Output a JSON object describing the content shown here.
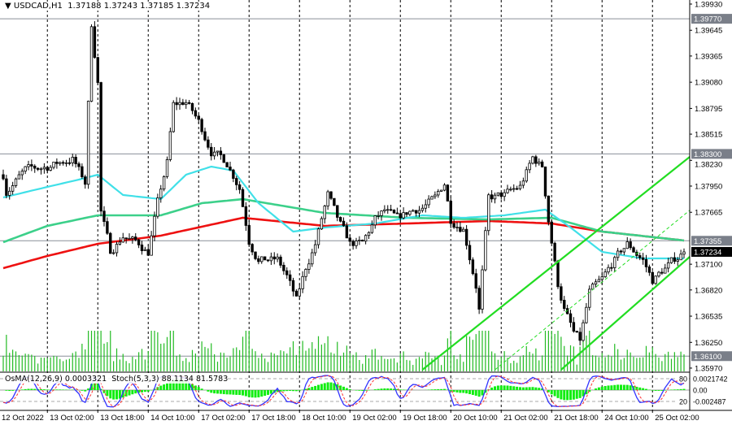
{
  "header": {
    "collapse_icon": "triangle-down-icon",
    "symbol": "USDCAD,H1",
    "ohlc": "1.37188 1.37243 1.37185 1.37234"
  },
  "oscillator": {
    "label": "OsMA(12,26,9) 0.0003321  Stoch(5,3,3) 88.1134 81.5783",
    "scale_labels": [
      "0.0021742",
      "0.00",
      "-0.002487"
    ],
    "level_labels": [
      "80",
      "20"
    ]
  },
  "colors": {
    "background": "#ffffff",
    "candle": "#000000",
    "ma_fast": "#40e0e8",
    "ma_mid": "#3cd08a",
    "ma_slow": "#ee1111",
    "channel": "#22dd22",
    "volume": "#22bb22",
    "osma": "#11ee11",
    "stoch_main": "#3333ff",
    "stoch_signal": "#ff3333",
    "level_label_bg": "#7a7f89",
    "price_label_bg": "#000000"
  },
  "chart_data": {
    "type": "candlestick",
    "symbol": "USDCAD",
    "timeframe": "H1",
    "ylim": [
      1.3597,
      1.3993
    ],
    "y_ticks": [
      "1.39930",
      "1.39645",
      "1.39365",
      "1.39080",
      "1.38795",
      "1.38515",
      "1.38230",
      "1.37950",
      "1.37665",
      "1.37100",
      "1.36820",
      "1.36535",
      "1.36250",
      "1.35970"
    ],
    "x_labels": [
      "12 Oct 2022",
      "13 Oct 02:00",
      "13 Oct 18:00",
      "14 Oct 10:00",
      "17 Oct 02:00",
      "17 Oct 18:00",
      "18 Oct 10:00",
      "19 Oct 02:00",
      "19 Oct 18:00",
      "20 Oct 10:00",
      "21 Oct 02:00",
      "21 Oct 18:00",
      "24 Oct 10:00",
      "25 Oct 02:00"
    ],
    "grid": "vertical dashed at date labels",
    "current_price": "1.37234",
    "horizontal_levels": [
      {
        "price": 1.3977,
        "label": "1.39770"
      },
      {
        "price": 1.383,
        "label": "1.38300"
      },
      {
        "price": 1.37355,
        "label": "1.37355"
      },
      {
        "price": 1.361,
        "label": "1.36100"
      }
    ],
    "close_path": [
      [
        "12 Oct 12:00",
        1.38074
      ],
      [
        "12 Oct 13:00",
        1.37897
      ],
      [
        "12 Oct 19:00",
        1.38118
      ],
      [
        "13 Oct 02:00",
        1.38162
      ],
      [
        "13 Oct 10:00",
        1.3825
      ],
      [
        "13 Oct 14:00",
        1.37985
      ],
      [
        "13 Oct 16:00",
        1.39709
      ],
      [
        "13 Oct 18:00",
        1.3909
      ],
      [
        "13 Oct 19:00",
        1.37676
      ],
      [
        "13 Oct 22:00",
        1.37234
      ],
      [
        "14 Oct 02:00",
        1.37411
      ],
      [
        "14 Oct 07:00",
        1.37322
      ],
      [
        "14 Oct 10:00",
        1.37234
      ],
      [
        "14 Oct 13:00",
        1.37764
      ],
      [
        "14 Oct 16:00",
        1.38206
      ],
      [
        "14 Oct 18:00",
        1.38825
      ],
      [
        "14 Oct 22:00",
        1.38869
      ],
      [
        "17 Oct 02:00",
        1.38648
      ],
      [
        "17 Oct 06:00",
        1.38339
      ],
      [
        "17 Oct 11:00",
        1.38206
      ],
      [
        "17 Oct 15:00",
        1.37941
      ],
      [
        "17 Oct 18:00",
        1.37366
      ],
      [
        "17 Oct 21:00",
        1.37145
      ],
      [
        "18 Oct 03:00",
        1.37145
      ],
      [
        "18 Oct 06:00",
        1.36969
      ],
      [
        "18 Oct 09:00",
        1.36703
      ],
      [
        "18 Oct 12:00",
        1.37057
      ],
      [
        "18 Oct 15:00",
        1.37322
      ],
      [
        "18 Oct 19:00",
        1.37853
      ],
      [
        "18 Oct 22:00",
        1.37587
      ],
      [
        "19 Oct 02:00",
        1.37322
      ],
      [
        "19 Oct 06:00",
        1.37322
      ],
      [
        "19 Oct 10:00",
        1.37587
      ],
      [
        "19 Oct 13:00",
        1.37676
      ],
      [
        "19 Oct 17:00",
        1.37587
      ],
      [
        "19 Oct 21:00",
        1.37676
      ],
      [
        "20 Oct 01:00",
        1.3772
      ],
      [
        "20 Oct 05:00",
        1.37808
      ],
      [
        "20 Oct 08:00",
        1.37985
      ],
      [
        "20 Oct 10:00",
        1.37587
      ],
      [
        "20 Oct 14:00",
        1.37499
      ],
      [
        "20 Oct 18:00",
        1.3688
      ],
      [
        "20 Oct 19:00",
        1.36615
      ],
      [
        "20 Oct 22:00",
        1.37808
      ],
      [
        "21 Oct 03:00",
        1.37853
      ],
      [
        "21 Oct 08:00",
        1.37941
      ],
      [
        "21 Oct 12:00",
        1.3825
      ],
      [
        "21 Oct 15:00",
        1.38162
      ],
      [
        "21 Oct 17:00",
        1.37587
      ],
      [
        "21 Oct 20:00",
        1.3688
      ],
      [
        "21 Oct 22:00",
        1.36615
      ],
      [
        "24 Oct 01:00",
        1.3635
      ],
      [
        "24 Oct 03:00",
        1.36261
      ],
      [
        "24 Oct 06:00",
        1.36792
      ],
      [
        "24 Oct 10:00",
        1.36924
      ],
      [
        "24 Oct 14:00",
        1.37145
      ],
      [
        "24 Oct 18:00",
        1.37322
      ],
      [
        "24 Oct 23:00",
        1.37145
      ],
      [
        "25 Oct 02:00",
        1.36924
      ],
      [
        "25 Oct 06:00",
        1.37057
      ],
      [
        "25 Oct 09:00",
        1.37145
      ],
      [
        "25 Oct 12:00",
        1.37234
      ]
    ],
    "moving_averages": [
      {
        "color_key": "ma_fast",
        "points": [
          [
            "12 Oct 12:00",
            1.37826
          ],
          [
            "13 Oct 02:00",
            1.37941
          ],
          [
            "13 Oct 13:00",
            1.38029
          ],
          [
            "13 Oct 18:00",
            1.38074
          ],
          [
            "14 Oct 02:00",
            1.37853
          ],
          [
            "14 Oct 14:00",
            1.37808
          ],
          [
            "14 Oct 22:00",
            1.38074
          ],
          [
            "17 Oct 06:00",
            1.38162
          ],
          [
            "17 Oct 13:00",
            1.38118
          ],
          [
            "17 Oct 21:00",
            1.37764
          ],
          [
            "18 Oct 08:00",
            1.37455
          ],
          [
            "18 Oct 18:00",
            1.37499
          ],
          [
            "19 Oct 10:00",
            1.37543
          ],
          [
            "20 Oct 01:00",
            1.37632
          ],
          [
            "20 Oct 14:00",
            1.37605
          ],
          [
            "21 Oct 03:00",
            1.37632
          ],
          [
            "21 Oct 16:00",
            1.37694
          ],
          [
            "24 Oct 00:00",
            1.37499
          ],
          [
            "24 Oct 10:00",
            1.37234
          ],
          [
            "24 Oct 23:00",
            1.37163
          ],
          [
            "25 Oct 12:00",
            1.37163
          ]
        ]
      },
      {
        "color_key": "ma_mid",
        "points": [
          [
            "12 Oct 12:00",
            1.3734
          ],
          [
            "13 Oct 02:00",
            1.37517
          ],
          [
            "13 Oct 18:00",
            1.37632
          ],
          [
            "14 Oct 14:00",
            1.37632
          ],
          [
            "17 Oct 03:00",
            1.37764
          ],
          [
            "17 Oct 16:00",
            1.37808
          ],
          [
            "18 Oct 18:00",
            1.37658
          ],
          [
            "19 Oct 20:00",
            1.37605
          ],
          [
            "20 Oct 22:00",
            1.37587
          ],
          [
            "21 Oct 18:00",
            1.37605
          ],
          [
            "24 Oct 10:00",
            1.37455
          ],
          [
            "25 Oct 12:00",
            1.37358
          ]
        ]
      },
      {
        "color_key": "ma_slow",
        "points": [
          [
            "12 Oct 12:00",
            1.37057
          ],
          [
            "13 Oct 02:00",
            1.3719
          ],
          [
            "13 Oct 18:00",
            1.37322
          ],
          [
            "14 Oct 14:00",
            1.37411
          ],
          [
            "17 Oct 16:00",
            1.37605
          ],
          [
            "18 Oct 18:00",
            1.37517
          ],
          [
            "19 Oct 20:00",
            1.37543
          ],
          [
            "20 Oct 22:00",
            1.3757
          ],
          [
            "21 Oct 18:00",
            1.37543
          ],
          [
            "24 Oct 10:00",
            1.37455
          ],
          [
            "25 Oct 12:00",
            1.37358
          ]
        ]
      }
    ],
    "trendlines": [
      {
        "style": "solid",
        "from": [
          "20 Oct 01:00",
          1.35952
        ],
        "to": [
          "25 Oct 15:00",
          1.383
        ]
      },
      {
        "style": "dashed",
        "from": [
          "21 Oct 00:00",
          1.35952
        ],
        "to": [
          "25 Oct 15:00",
          1.3772
        ]
      },
      {
        "style": "solid",
        "from": [
          "21 Oct 21:00",
          1.35952
        ],
        "to": [
          "25 Oct 15:00",
          1.37216
        ]
      }
    ]
  }
}
